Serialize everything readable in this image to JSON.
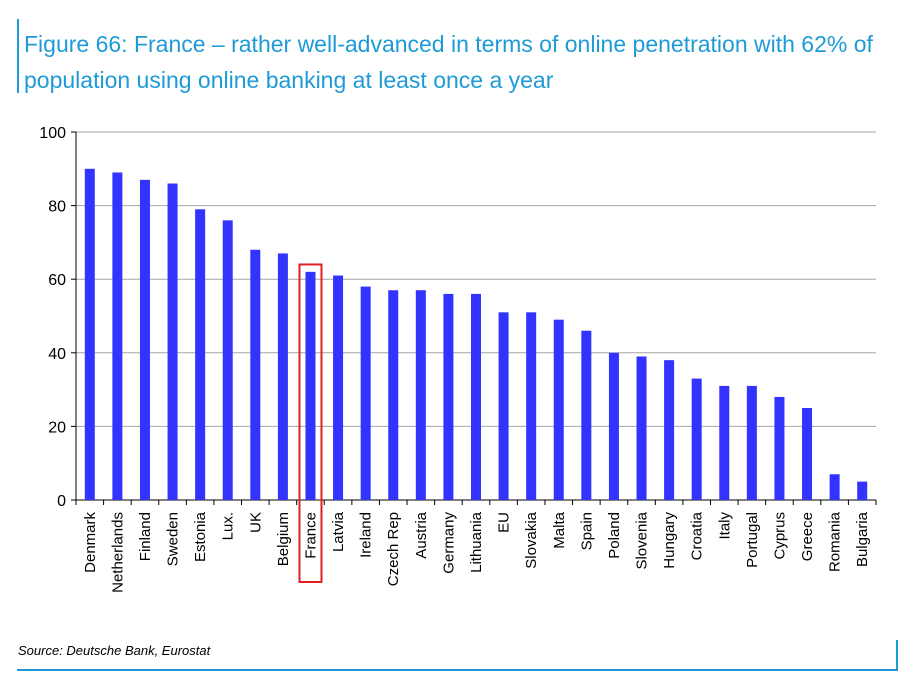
{
  "figure": {
    "title": "Figure 66: France – rather well-advanced in terms of online penetration with 62% of population using online banking at least once a year",
    "source": "Source: Deutsche Bank, Eurostat",
    "accent_color": "#1e9bd7"
  },
  "chart_data": {
    "type": "bar",
    "title": "",
    "xlabel": "",
    "ylabel": "",
    "ylim": [
      0,
      100
    ],
    "yticks": [
      0,
      20,
      40,
      60,
      80,
      100
    ],
    "grid": true,
    "bar_color": "#3333ff",
    "highlight_category": "France",
    "highlight_color": "#e02020",
    "categories": [
      "Denmark",
      "Netherlands",
      "Finland",
      "Sweden",
      "Estonia",
      "Lux.",
      "UK",
      "Belgium",
      "France",
      "Latvia",
      "Ireland",
      "Czech Rep",
      "Austria",
      "Germany",
      "Lithuania",
      "EU",
      "Slovakia",
      "Malta",
      "Spain",
      "Poland",
      "Slovenia",
      "Hungary",
      "Croatia",
      "Italy",
      "Portugal",
      "Cyprus",
      "Greece",
      "Romania",
      "Bulgaria"
    ],
    "values": [
      90,
      89,
      87,
      86,
      79,
      76,
      68,
      67,
      62,
      61,
      58,
      57,
      57,
      56,
      56,
      51,
      51,
      49,
      46,
      40,
      39,
      38,
      33,
      31,
      31,
      28,
      25,
      7,
      5
    ]
  }
}
